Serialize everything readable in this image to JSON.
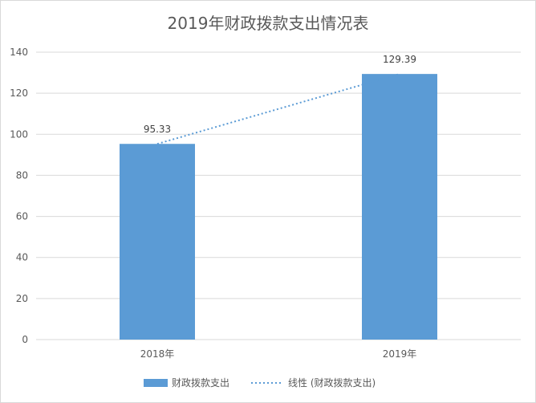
{
  "chart_data": {
    "type": "bar",
    "title": "2019年财政拨款支出情况表",
    "categories": [
      "2018年",
      "2019年"
    ],
    "series": [
      {
        "name": "财政拨款支出",
        "values": [
          95.33,
          129.39
        ],
        "color": "#5b9bd5"
      }
    ],
    "trendline": {
      "name": "线性 (财政拨款支出)",
      "type": "linear",
      "color": "#5b9bd5",
      "style": "dotted"
    },
    "data_labels": [
      "95.33",
      "129.39"
    ],
    "yticks": [
      "0",
      "20",
      "40",
      "60",
      "80",
      "100",
      "120",
      "140"
    ],
    "ylim": [
      0,
      140
    ],
    "grid": true,
    "legend_position": "bottom"
  }
}
